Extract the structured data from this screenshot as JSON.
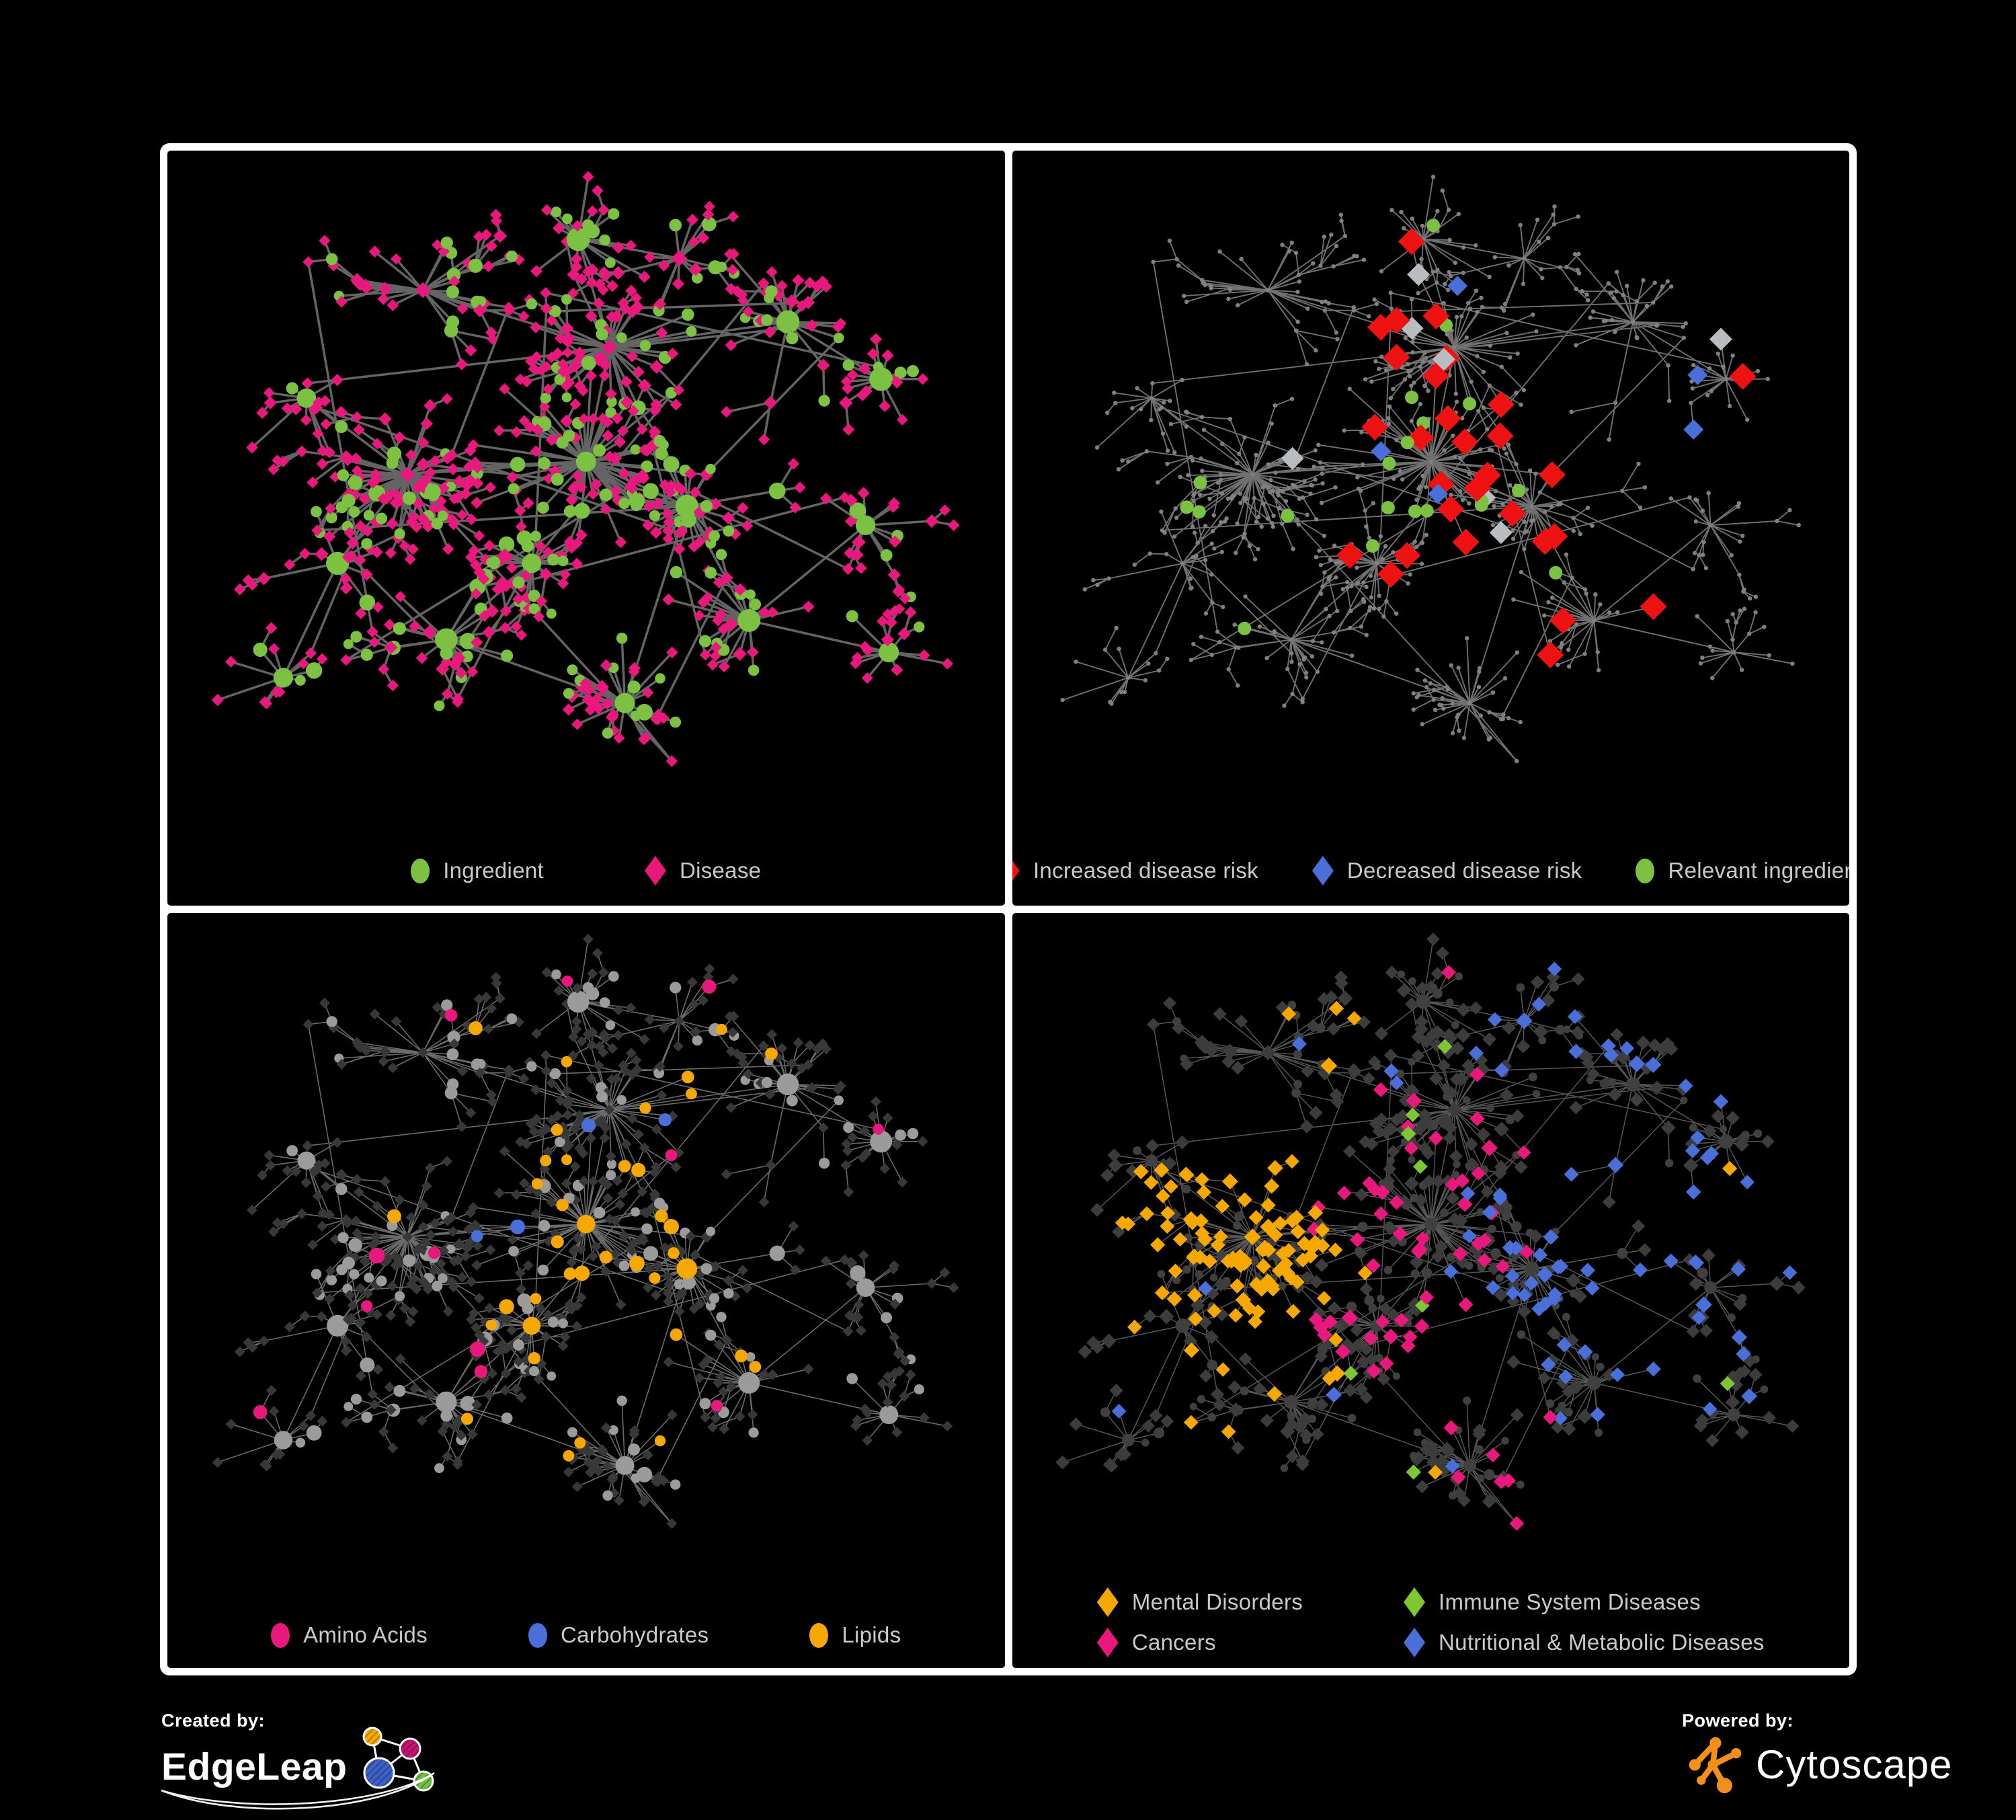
{
  "figure": {
    "background": "#000000",
    "panel_border_color": "#ffffff",
    "legend_text_color": "#C9C9C9"
  },
  "panels": [
    {
      "id": "ingredient-disease",
      "legend": [
        {
          "label": "Ingredient",
          "shape": "ellipse",
          "color": "#7CC142"
        },
        {
          "label": "Disease",
          "shape": "diamond",
          "color": "#E8187D"
        }
      ]
    },
    {
      "id": "disease-risk",
      "legend": [
        {
          "label": "Increased disease risk",
          "shape": "diamond",
          "color": "#EE1212"
        },
        {
          "label": "Decreased disease risk",
          "shape": "diamond",
          "color": "#4A6FD8"
        },
        {
          "label": "Relevant ingredient",
          "shape": "ellipse",
          "color": "#7CC142"
        }
      ]
    },
    {
      "id": "nutrient-classes",
      "legend": [
        {
          "label": "Amino Acids",
          "shape": "ellipse",
          "color": "#E8187D"
        },
        {
          "label": "Carbohydrates",
          "shape": "ellipse",
          "color": "#4A6FD8"
        },
        {
          "label": "Lipids",
          "shape": "ellipse",
          "color": "#F5A800"
        }
      ]
    },
    {
      "id": "disease-classes",
      "legend_layout": "two-columns",
      "legend": [
        {
          "label": "Mental Disorders",
          "shape": "diamond",
          "color": "#F5A800"
        },
        {
          "label": "Immune System Diseases",
          "shape": "diamond",
          "color": "#7DC832"
        },
        {
          "label": "Cancers",
          "shape": "diamond",
          "color": "#E8187D"
        },
        {
          "label": "Nutritional & Metabolic Diseases",
          "shape": "diamond",
          "color": "#4A6FD8"
        }
      ]
    }
  ],
  "panel_styles": [
    {
      "edge": {
        "color": "#696969",
        "width": 3.5,
        "opacity": 0.95
      },
      "ingredient": {
        "shape": "circle",
        "color": "#7CC142"
      },
      "disease": {
        "shape": "diamond",
        "color": "#E8187D"
      },
      "highlights": []
    },
    {
      "edge": {
        "color": "#7C7C7C",
        "width": 1.9,
        "opacity": 0.9
      },
      "base_dot": {
        "color": "#808080",
        "r": 3.2
      },
      "highlights": [
        {
          "name": "increased-risk",
          "target": "disease",
          "color": "#EE1212",
          "shape": "diamond",
          "size": 20,
          "base": 0.006,
          "clusters": {
            "0": 0.17,
            "1": 0.12,
            "3": 0.14,
            "14": 0.1,
            "12": 0.07
          }
        },
        {
          "name": "decreased-risk",
          "target": "disease",
          "color": "#4A6FD8",
          "shape": "diamond",
          "size": 15,
          "base": 0.004,
          "clusters": {
            "7": 0.2,
            "0": 0.03
          }
        },
        {
          "name": "unchanged-risk",
          "target": "disease",
          "color": "#B9BCC0",
          "shape": "diamond",
          "size": 17,
          "base": 0.002,
          "clusters": {
            "0": 0.05,
            "3": 0.05,
            "1": 0.03
          }
        },
        {
          "name": "relevant-ingredient",
          "target": "ingredient",
          "color": "#7CC142",
          "shape": "circle",
          "size": 10,
          "base": 0.012,
          "clusters": {
            "0": 0.28,
            "1": 0.22,
            "2": 0.15,
            "3": 0.12,
            "12": 0.12
          }
        }
      ]
    },
    {
      "edge": {
        "color": "#8F8F8F",
        "width": 1.6,
        "opacity": 0.75
      },
      "ingredient": {
        "shape": "circle",
        "color": "#9B9B9B"
      },
      "disease": {
        "shape": "diamond",
        "color": "#383838"
      },
      "highlights": [
        {
          "name": "lipids",
          "target": "ingredient",
          "color": "#F5A800",
          "shape": "circle",
          "size": 0,
          "base": 0.05,
          "clusters": {
            "1": 0.6,
            "0": 0.28,
            "14": 0.3,
            "4": 0.25,
            "3": 0.2
          }
        },
        {
          "name": "carbohydrates",
          "target": "ingredient",
          "color": "#4A6FD8",
          "shape": "circle",
          "size": 0,
          "base": 0.01,
          "clusters": {
            "1": 0.22,
            "0": 0.05
          }
        },
        {
          "name": "amino-acids",
          "target": "ingredient",
          "color": "#E8187D",
          "shape": "circle",
          "size": 0,
          "base": 0.03,
          "clusters": {
            "2": 0.1,
            "5": 0.12,
            "8": 0.1,
            "11": 0.12,
            "9": 0.1,
            "16": 0.1
          }
        }
      ]
    },
    {
      "edge": {
        "color": "#909090",
        "width": 1.5,
        "opacity": 0.6
      },
      "ingredient": {
        "shape": "circle",
        "color": "#404040"
      },
      "disease": {
        "shape": "diamond",
        "color": "#3C3C3C"
      },
      "highlights": [
        {
          "name": "mental-disorders",
          "target": "disease",
          "color": "#F5A800",
          "shape": "diamond",
          "size": 0,
          "base": 0.012,
          "clusters": {
            "2": 0.8,
            "10": 0.3,
            "8": 0.15,
            "11": 0.2,
            "5": 0.1
          }
        },
        {
          "name": "cancers",
          "target": "disease",
          "color": "#E8187D",
          "shape": "diamond",
          "size": 0,
          "base": 0.01,
          "clusters": {
            "0": 0.4,
            "14": 0.5,
            "4": 0.12,
            "1": 0.1
          }
        },
        {
          "name": "nutritional-metabolic",
          "target": "disease",
          "color": "#4A6FD8",
          "shape": "diamond",
          "size": 0,
          "base": 0.045,
          "clusters": {
            "3": 0.55,
            "6": 0.35,
            "7": 0.4,
            "13": 0.35,
            "15": 0.3,
            "12": 0.25,
            "17": 0.25
          }
        },
        {
          "name": "immune-system",
          "target": "disease",
          "color": "#7DC832",
          "shape": "diamond",
          "size": 0,
          "base": 0.02,
          "clusters": {}
        }
      ]
    }
  ],
  "network": {
    "seed": 1337,
    "clusters": [
      [
        0.5,
        0.46,
        64,
        0.085
      ],
      [
        0.53,
        0.28,
        48,
        0.07
      ],
      [
        0.27,
        0.48,
        58,
        0.08
      ],
      [
        0.63,
        0.53,
        36,
        0.065
      ],
      [
        0.55,
        0.84,
        32,
        0.06
      ],
      [
        0.32,
        0.74,
        26,
        0.065
      ],
      [
        0.76,
        0.24,
        26,
        0.075
      ],
      [
        0.88,
        0.33,
        19,
        0.055
      ],
      [
        0.29,
        0.19,
        26,
        0.075
      ],
      [
        0.49,
        0.11,
        19,
        0.055
      ],
      [
        0.14,
        0.36,
        17,
        0.055
      ],
      [
        0.18,
        0.62,
        15,
        0.05
      ],
      [
        0.71,
        0.71,
        22,
        0.065
      ],
      [
        0.86,
        0.56,
        14,
        0.05
      ],
      [
        0.43,
        0.62,
        26,
        0.06
      ],
      [
        0.62,
        0.14,
        15,
        0.05
      ],
      [
        0.11,
        0.8,
        12,
        0.05
      ],
      [
        0.89,
        0.76,
        11,
        0.05
      ]
    ],
    "ingredient_prob": 0.24,
    "hub_ingredient_prob": 0.55,
    "subhub_prob": 0.18,
    "cross_links": 22
  },
  "footer": {
    "created_by_label": "Created by:",
    "edgeleap_name": "EdgeLeap",
    "powered_by_label": "Powered by:",
    "cytoscape_name": "Cytoscape",
    "cytoscape_orange": "#F39019",
    "edgeleap_node_colors": {
      "orange": "#F5A800",
      "magenta": "#C4136F",
      "blue": "#3E5FC4",
      "green": "#6FBF44"
    }
  }
}
